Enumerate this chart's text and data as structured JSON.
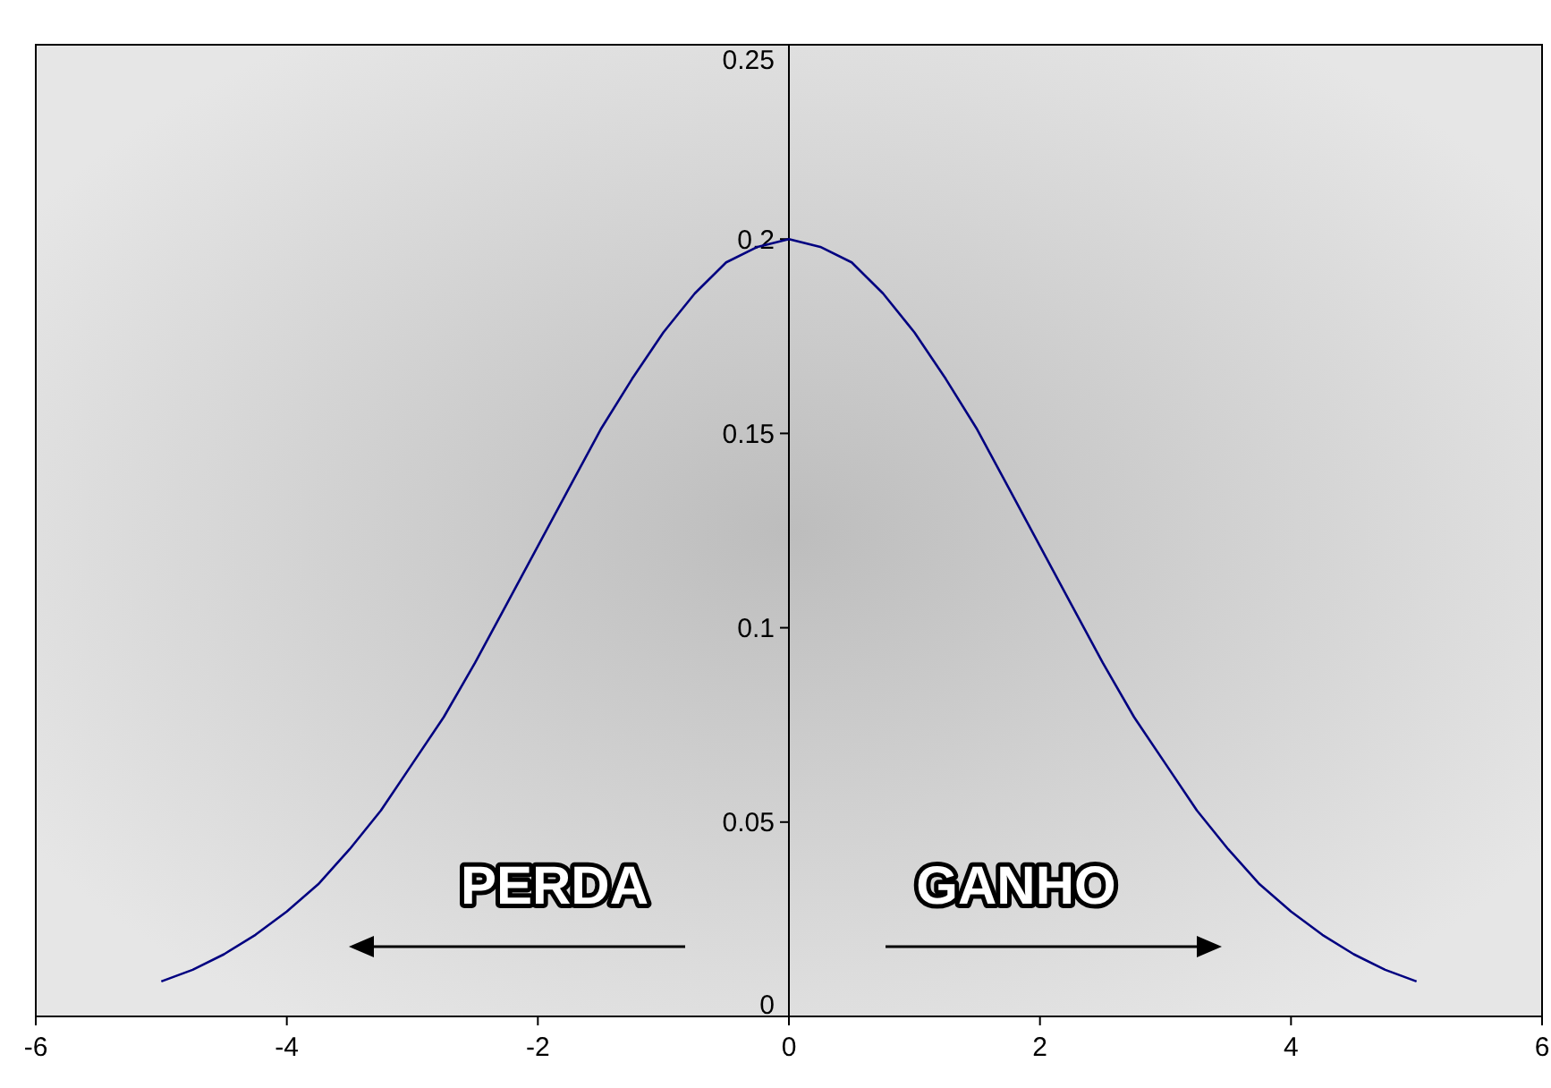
{
  "chart_data": {
    "type": "line",
    "x": [
      -5,
      -4.75,
      -4.5,
      -4.25,
      -4,
      -3.75,
      -3.5,
      -3.25,
      -3,
      -2.75,
      -2.5,
      -2.25,
      -2,
      -1.75,
      -1.5,
      -1.25,
      -1,
      -0.75,
      -0.5,
      -0.25,
      0,
      0.25,
      0.5,
      0.75,
      1,
      1.25,
      1.5,
      1.75,
      2,
      2.25,
      2.5,
      2.75,
      3,
      3.25,
      3.5,
      3.75,
      4,
      4.25,
      4.5,
      4.75,
      5
    ],
    "series": [
      {
        "color": "#000080",
        "values": [
          0.009,
          0.012,
          0.016,
          0.021,
          0.027,
          0.034,
          0.043,
          0.053,
          0.065,
          0.077,
          0.091,
          0.106,
          0.121,
          0.136,
          0.151,
          0.164,
          0.176,
          0.186,
          0.194,
          0.198,
          0.2,
          0.198,
          0.194,
          0.186,
          0.176,
          0.164,
          0.151,
          0.136,
          0.121,
          0.106,
          0.091,
          0.077,
          0.065,
          0.053,
          0.043,
          0.034,
          0.027,
          0.021,
          0.016,
          0.012,
          0.009
        ]
      }
    ],
    "xlim": [
      -6,
      6
    ],
    "xticks": [
      -6,
      -4,
      -2,
      0,
      2,
      4,
      6
    ],
    "ylim": [
      0,
      0.25
    ],
    "yticks": [
      0,
      0.05,
      0.1,
      0.15,
      0.2,
      0.25
    ],
    "annotations": [
      "PERDA",
      "GANHO"
    ],
    "grid": false,
    "marker": "none",
    "line_style": "solid"
  }
}
